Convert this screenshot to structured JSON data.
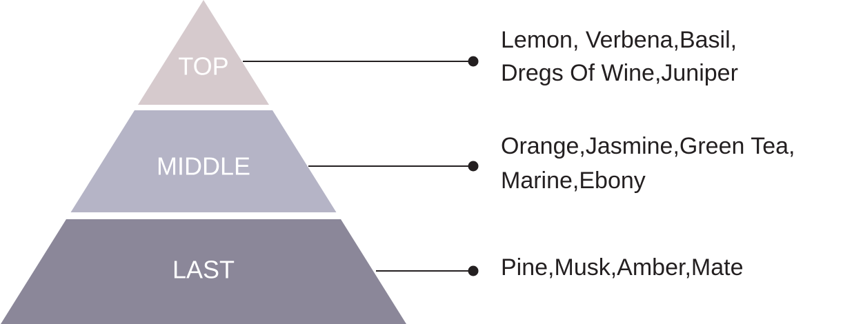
{
  "tiers": [
    {
      "label": "TOP",
      "notes": [
        "Lemon, Verbena,Basil,",
        "Dregs Of Wine,Juniper"
      ]
    },
    {
      "label": "MIDDLE",
      "notes": [
        "Orange,Jasmine,Green Tea,",
        "Marine,Ebony"
      ]
    },
    {
      "label": "LAST",
      "notes": [
        "Pine,Musk,Amber,Mate"
      ]
    }
  ]
}
